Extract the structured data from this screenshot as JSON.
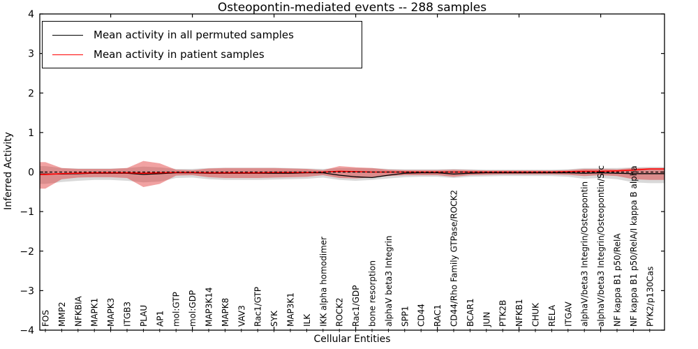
{
  "chart_data": {
    "type": "line",
    "title": "Osteopontin-mediated events -- 288 samples",
    "xlabel": "Cellular Entities",
    "ylabel": "Inferred Activity",
    "ylim": [
      -4,
      4
    ],
    "grid": false,
    "legend_position": "upper left",
    "background_color": "#ffffff",
    "axis_color": "#000000",
    "yticks": {
      "values": [
        4,
        3,
        2,
        1,
        0,
        -1,
        -2,
        -3,
        -4
      ],
      "labels": [
        "4",
        "3",
        "2",
        "1",
        "0",
        "−1",
        "−2",
        "−3",
        "−4"
      ]
    },
    "x_major_ticks": [
      5,
      10,
      15,
      20,
      25,
      30,
      35
    ],
    "categories": [
      "FOS",
      "MMP2",
      "NFKBIA",
      "MAPK1",
      "MAPK3",
      "ITGB3",
      "PLAU",
      "AP1",
      "mol:GTP",
      "mol:GDP",
      "MAP3K14",
      "MAPK8",
      "VAV3",
      "Rac1/GTP",
      "SYK",
      "MAP3K1",
      "ILK",
      "IKK alpha homodimer",
      "ROCK2",
      "Rac1/GDP",
      "bone resorption",
      "alphaV beta3 Integrin",
      "SPP1",
      "CD44",
      "RAC1",
      "CD44/Rho Family GTPase/ROCK2",
      "BCAR1",
      "JUN",
      "PTK2B",
      "NFKB1",
      "CHUK",
      "RELA",
      "ITGAV",
      "alphaV/beta3 Integrin/Osteopontin",
      "alphaV/beta3 Integrin/Osteopontin/Src",
      "NF kappa B1 p50/RelA",
      "NF kappa B1 p50/RelA/I kappa B alpha",
      "PYK2/p130Cas"
    ],
    "zero_line": {
      "y": 0,
      "color": "#000000",
      "style": "dashed"
    },
    "series": [
      {
        "name": "Mean activity in all permuted samples",
        "line_color": "#000000",
        "band_fill": "#aaaaaa",
        "band_opacity": 0.45,
        "values": [
          -0.05,
          -0.05,
          -0.04,
          -0.03,
          -0.03,
          -0.03,
          -0.06,
          -0.04,
          -0.02,
          -0.02,
          -0.03,
          -0.03,
          -0.03,
          -0.03,
          -0.03,
          -0.03,
          -0.02,
          -0.02,
          -0.08,
          -0.12,
          -0.14,
          -0.08,
          -0.03,
          -0.02,
          -0.02,
          -0.05,
          -0.03,
          -0.02,
          -0.02,
          -0.02,
          -0.02,
          -0.02,
          -0.02,
          -0.03,
          -0.02,
          -0.03,
          -0.04,
          -0.04
        ],
        "band_upper": [
          0.15,
          0.1,
          0.09,
          0.09,
          0.09,
          0.1,
          0.14,
          0.12,
          0.08,
          0.08,
          0.1,
          0.11,
          0.11,
          0.11,
          0.11,
          0.1,
          0.09,
          0.08,
          0.1,
          0.1,
          0.1,
          0.08,
          0.07,
          0.07,
          0.07,
          0.08,
          0.07,
          0.06,
          0.06,
          0.06,
          0.06,
          0.06,
          0.07,
          0.1,
          0.1,
          0.1,
          0.12,
          0.13
        ],
        "band_lower": [
          -0.3,
          -0.25,
          -0.22,
          -0.2,
          -0.2,
          -0.22,
          -0.26,
          -0.24,
          -0.15,
          -0.14,
          -0.18,
          -0.2,
          -0.2,
          -0.2,
          -0.19,
          -0.18,
          -0.17,
          -0.14,
          -0.2,
          -0.22,
          -0.2,
          -0.16,
          -0.13,
          -0.12,
          -0.12,
          -0.15,
          -0.12,
          -0.11,
          -0.1,
          -0.1,
          -0.1,
          -0.1,
          -0.12,
          -0.17,
          -0.15,
          -0.18,
          -0.26,
          -0.28
        ]
      },
      {
        "name": "Mean activity in patient samples",
        "line_color": "#ff0000",
        "band_fill": "#dd2222",
        "band_opacity": 0.42,
        "values": [
          -0.06,
          -0.04,
          -0.03,
          -0.02,
          -0.02,
          -0.02,
          -0.03,
          -0.02,
          -0.01,
          -0.01,
          -0.02,
          -0.02,
          -0.02,
          -0.02,
          -0.01,
          -0.01,
          -0.01,
          0.0,
          0.02,
          0.01,
          0.0,
          0.0,
          0.0,
          0.0,
          0.0,
          0.0,
          0.0,
          0.0,
          0.0,
          0.0,
          0.0,
          0.0,
          0.01,
          0.02,
          0.02,
          0.03,
          0.05,
          0.08
        ],
        "band_upper": [
          0.25,
          0.1,
          0.08,
          0.08,
          0.08,
          0.1,
          0.28,
          0.22,
          0.06,
          0.05,
          0.09,
          0.1,
          0.1,
          0.1,
          0.1,
          0.09,
          0.08,
          0.05,
          0.15,
          0.12,
          0.1,
          0.06,
          0.05,
          0.05,
          0.05,
          0.06,
          0.05,
          0.04,
          0.04,
          0.04,
          0.04,
          0.04,
          0.05,
          0.08,
          0.08,
          0.07,
          0.1,
          0.1
        ],
        "band_lower": [
          -0.42,
          -0.18,
          -0.14,
          -0.13,
          -0.13,
          -0.15,
          -0.38,
          -0.3,
          -0.09,
          -0.08,
          -0.13,
          -0.15,
          -0.15,
          -0.15,
          -0.14,
          -0.13,
          -0.12,
          -0.08,
          -0.15,
          -0.16,
          -0.14,
          -0.1,
          -0.08,
          -0.08,
          -0.08,
          -0.12,
          -0.08,
          -0.07,
          -0.06,
          -0.06,
          -0.06,
          -0.06,
          -0.07,
          -0.1,
          -0.08,
          -0.1,
          -0.18,
          -0.2
        ]
      }
    ]
  }
}
